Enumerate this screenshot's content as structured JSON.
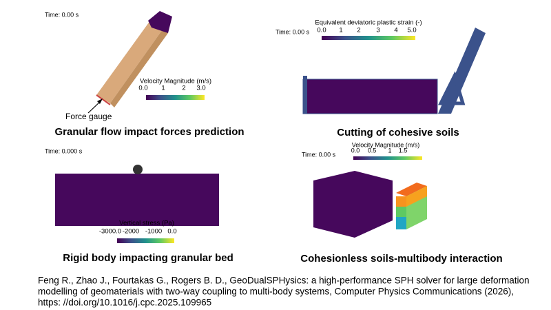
{
  "panels": [
    {
      "time": "Time: 0.00 s",
      "colorbar": {
        "title": "Velocity Magnitude (m/s)",
        "ticks": [
          "0.0",
          "1",
          "2",
          "3.0"
        ]
      },
      "annotation": "Force gauge",
      "caption": "Granular flow impact forces prediction"
    },
    {
      "time": "Time: 0.00 s",
      "colorbar": {
        "title": "Equivalent deviatoric plastic strain (-)",
        "ticks": [
          "0.0",
          "1",
          "2",
          "3",
          "4",
          "5.0"
        ]
      },
      "caption": "Cutting of cohesive soils"
    },
    {
      "time": "Time: 0.000 s",
      "colorbar": {
        "title": "Vertical stress (Pa)",
        "ticks": [
          "-3000.0",
          "-2000",
          "-1000",
          "0.0"
        ]
      },
      "caption": "Rigid body impacting granular bed"
    },
    {
      "time": "Time: 0.00 s",
      "colorbar": {
        "title": "Velocity Magnitude (m/s)",
        "ticks": [
          "0.0",
          "0.5",
          "1",
          "1.5"
        ]
      },
      "caption": "Cohesionless soils-multibody interaction"
    }
  ],
  "citation": [
    "Feng R., Zhao J., Fourtakas G., Rogers B. D., GeoDualSPHysics: a high-performance SPH solver for large deformation",
    "modelling of geomaterials with two-way coupling to multi-body systems, Computer Physics Communications (2026),",
    "https: //doi.org/10.1016/j.cpc.2025.109965"
  ]
}
